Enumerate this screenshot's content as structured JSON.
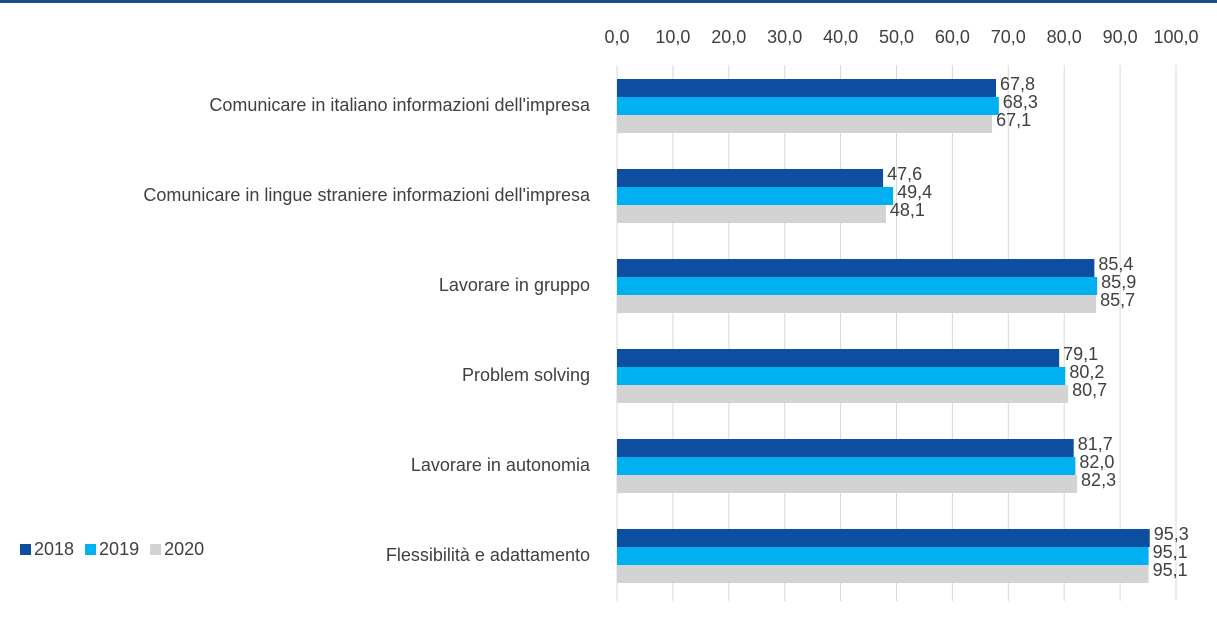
{
  "chart_data": {
    "type": "barh",
    "categories": [
      "Comunicare in italiano informazioni dell'impresa",
      "Comunicare in lingue straniere informazioni dell'impresa",
      "Lavorare in gruppo",
      "Problem solving",
      "Lavorare in autonomia",
      "Flessibilità e adattamento"
    ],
    "series": [
      {
        "name": "2018",
        "color": "#0d4ea1",
        "values": [
          67.8,
          47.6,
          85.4,
          79.1,
          81.7,
          95.3
        ],
        "value_labels": [
          "67,8",
          "47,6",
          "85,4",
          "79,1",
          "81,7",
          "95,3"
        ]
      },
      {
        "name": "2019",
        "color": "#00b0f0",
        "values": [
          68.3,
          49.4,
          85.9,
          80.2,
          82.0,
          95.1
        ],
        "value_labels": [
          "68,3",
          "49,4",
          "85,9",
          "80,2",
          "82,0",
          "95,1"
        ]
      },
      {
        "name": "2020",
        "color": "#d3d3d3",
        "values": [
          67.1,
          48.1,
          85.7,
          80.7,
          82.3,
          95.1
        ],
        "value_labels": [
          "67,1",
          "48,1",
          "85,7",
          "80,7",
          "82,3",
          "95,1"
        ]
      }
    ],
    "xlim": [
      0,
      100
    ],
    "xticks": [
      {
        "value": 0,
        "label": "0,0"
      },
      {
        "value": 10,
        "label": "10,0"
      },
      {
        "value": 20,
        "label": "20,0"
      },
      {
        "value": 30,
        "label": "30,0"
      },
      {
        "value": 40,
        "label": "40,0"
      },
      {
        "value": 50,
        "label": "50,0"
      },
      {
        "value": 60,
        "label": "60,0"
      },
      {
        "value": 70,
        "label": "70,0"
      },
      {
        "value": 80,
        "label": "80,0"
      },
      {
        "value": 90,
        "label": "90,0"
      },
      {
        "value": 100,
        "label": "100,0"
      }
    ],
    "grid": true,
    "legend": "bottom-left"
  }
}
